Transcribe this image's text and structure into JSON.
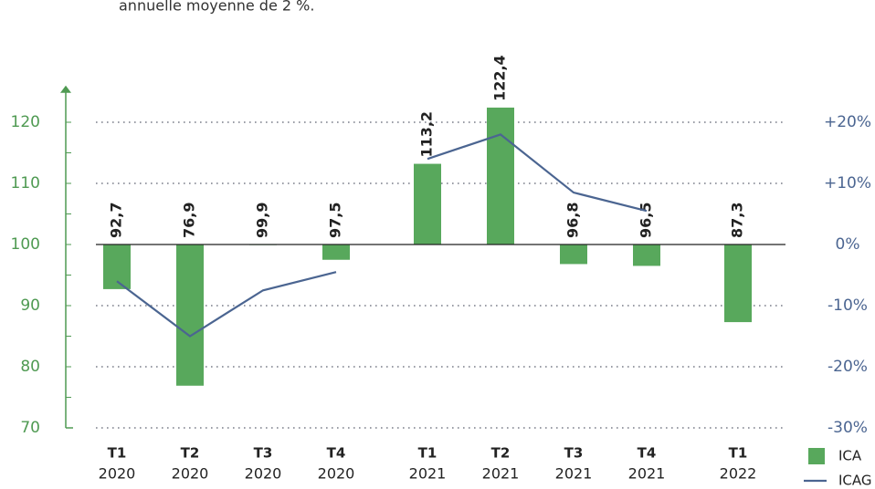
{
  "chart_data": {
    "type": "bar",
    "note": "annuelle moyenne de 2 %.",
    "categories": [
      {
        "quarter": "T1",
        "year": "2020"
      },
      {
        "quarter": "T2",
        "year": "2020"
      },
      {
        "quarter": "T3",
        "year": "2020"
      },
      {
        "quarter": "T4",
        "year": "2020"
      },
      null,
      {
        "quarter": "T1",
        "year": "2021"
      },
      {
        "quarter": "T2",
        "year": "2021"
      },
      {
        "quarter": "T3",
        "year": "2021"
      },
      {
        "quarter": "T4",
        "year": "2021"
      },
      null,
      {
        "quarter": "T1",
        "year": "2022"
      }
    ],
    "series": [
      {
        "name": "ICA",
        "type": "bar",
        "color": "#58a85c",
        "values": [
          92.7,
          76.9,
          99.9,
          97.5,
          null,
          113.2,
          122.4,
          96.8,
          96.5,
          null,
          87.3
        ],
        "value_labels": [
          "92,7",
          "76,9",
          "99,9",
          "97,5",
          null,
          "113,2",
          "122,4",
          "96,8",
          "96,5",
          null,
          "87,3"
        ]
      },
      {
        "name": "ICAG",
        "type": "line",
        "axis": "y2",
        "color": "#4b6591",
        "values": [
          -6,
          -15,
          -7.5,
          -4.5,
          null,
          14,
          18,
          8.5,
          5.5,
          null,
          null
        ]
      }
    ],
    "base": 100,
    "ylim": [
      70,
      126
    ],
    "yticks": [
      70,
      80,
      90,
      100,
      110,
      120
    ],
    "y2lim": [
      -30,
      26
    ],
    "y2ticks": [
      {
        "value": -30,
        "label": "-30%"
      },
      {
        "value": -20,
        "label": "-20%"
      },
      {
        "value": -10,
        "label": "-10%"
      },
      {
        "value": 0,
        "label": "0%"
      },
      {
        "value": 10,
        "label": "+10%"
      },
      {
        "value": 20,
        "label": "+20%"
      }
    ],
    "grid": true,
    "legend": "bottom-right"
  }
}
